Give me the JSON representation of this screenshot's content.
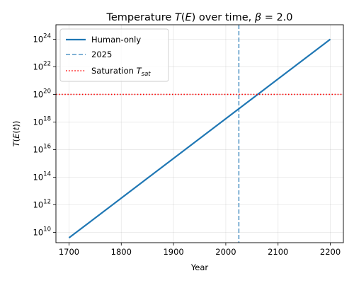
{
  "chart_data": {
    "type": "line",
    "title": {
      "prefix": "Temperature ",
      "var": "T",
      "paren_open": "(",
      "var2": "E",
      "paren_close": ")",
      "mid": " over time, ",
      "beta": "β",
      "suffix": " = 2.0"
    },
    "xlabel": "Year",
    "ylabel": {
      "var": "T",
      "paren_open": "(",
      "var2": "E",
      "paren_open2": "(",
      "var3": "t",
      "paren_close": "))"
    },
    "x_scale": "linear",
    "y_scale": "log",
    "xlim": [
      1675,
      2225
    ],
    "ylim_log10": [
      9.25,
      25.05
    ],
    "x_ticks": [
      1700,
      1800,
      1900,
      2000,
      2100,
      2200
    ],
    "y_tick_exponents": [
      10,
      12,
      14,
      16,
      18,
      20,
      22,
      24
    ],
    "y_tick_base": "10",
    "grid": true,
    "legend_position": "top-left",
    "series": [
      {
        "name": "Human-only",
        "style": "solid",
        "color": "#1f77b4",
        "x": [
          1700,
          2200
        ],
        "y_log10": [
          9.6,
          24.0
        ]
      },
      {
        "name": "2025",
        "style": "dashed-vertical",
        "color": "#1f77b4",
        "x_value": 2025
      },
      {
        "name_prefix": "Saturation ",
        "name_var": "T",
        "name_sub": "sat",
        "style": "dotted-horizontal",
        "color": "#ff0000",
        "y_log10_value": 20
      }
    ]
  }
}
